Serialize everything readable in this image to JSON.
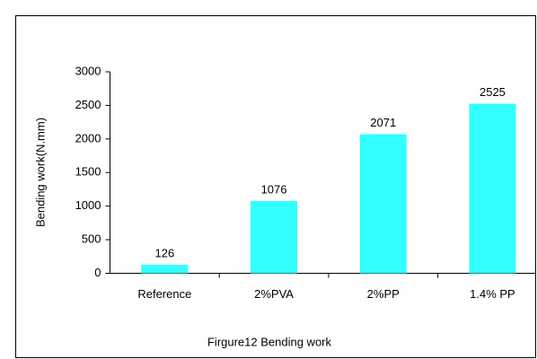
{
  "chart_data": {
    "type": "bar",
    "title": "Firgure12 Bending work",
    "y_label": "Bending work(N.mm)",
    "categories": [
      "Reference",
      "2%PVA",
      "2%PP",
      "1.4% PP"
    ],
    "values": [
      126,
      1076,
      2071,
      2525
    ],
    "color": "#33ffff",
    "ylim": [
      0,
      3000
    ],
    "yticks": [
      0,
      500,
      1000,
      1500,
      2000,
      2500,
      3000
    ],
    "grid": false
  }
}
